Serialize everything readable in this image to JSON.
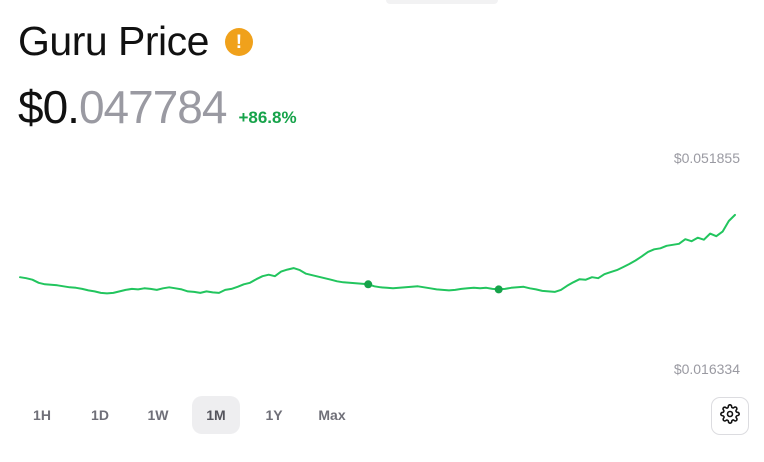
{
  "coin": {
    "title": "Guru Price",
    "warning_icon": "exclamation-circle-icon",
    "price_integer_part": "$0.",
    "price_decimal_part": "047784",
    "change": "+86.8%",
    "change_color": "#16a34a"
  },
  "chart_data": {
    "type": "line",
    "y_max_label": "$0.051855",
    "y_min_label": "$0.016334",
    "ylim": [
      0.016334,
      0.051855
    ],
    "line_color": "#22c55e",
    "series": [
      {
        "values": [
          0.0307,
          0.0305,
          0.0302,
          0.0296,
          0.0293,
          0.0292,
          0.0291,
          0.0289,
          0.0287,
          0.0286,
          0.0284,
          0.0281,
          0.0279,
          0.0276,
          0.0275,
          0.0276,
          0.0279,
          0.0282,
          0.0284,
          0.0283,
          0.0285,
          0.0284,
          0.0282,
          0.0285,
          0.0287,
          0.0285,
          0.0283,
          0.0279,
          0.0278,
          0.0276,
          0.0279,
          0.0277,
          0.0276,
          0.0282,
          0.0284,
          0.0288,
          0.0293,
          0.0296,
          0.0303,
          0.0309,
          0.0312,
          0.0309,
          0.0318,
          0.0322,
          0.0325,
          0.0321,
          0.0314,
          0.0311,
          0.0308,
          0.0305,
          0.0302,
          0.0299,
          0.0297,
          0.0296,
          0.0295,
          0.0294,
          0.0293,
          0.0289,
          0.0287,
          0.0286,
          0.0285,
          0.0286,
          0.0287,
          0.0288,
          0.0289,
          0.0287,
          0.0285,
          0.0283,
          0.0282,
          0.0281,
          0.0282,
          0.0284,
          0.0285,
          0.0286,
          0.0285,
          0.0286,
          0.0284,
          0.0283,
          0.0284,
          0.0286,
          0.0287,
          0.0288,
          0.0285,
          0.0283,
          0.028,
          0.0279,
          0.0278,
          0.0282,
          0.029,
          0.0297,
          0.0303,
          0.0302,
          0.0307,
          0.0305,
          0.0313,
          0.0317,
          0.0321,
          0.0327,
          0.0333,
          0.034,
          0.0348,
          0.0357,
          0.0362,
          0.0364,
          0.0369,
          0.0371,
          0.0373,
          0.0382,
          0.0378,
          0.0385,
          0.0381,
          0.0393,
          0.0388,
          0.0397,
          0.0418,
          0.043
        ],
        "markers": [
          56,
          77
        ]
      }
    ],
    "grid": false
  },
  "range_buttons": [
    "1H",
    "1D",
    "1W",
    "1M",
    "1Y",
    "Max"
  ],
  "selected_range": "1M",
  "settings_icon": "gear-icon"
}
